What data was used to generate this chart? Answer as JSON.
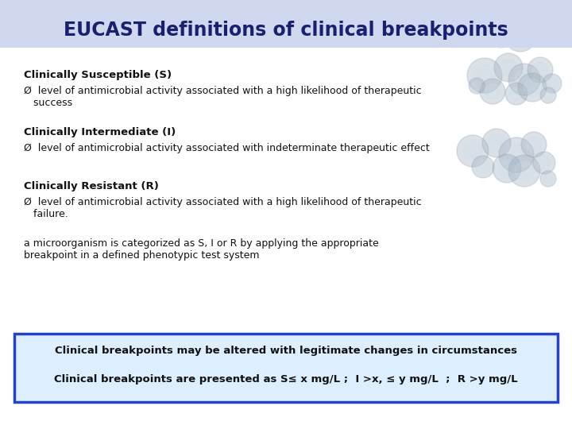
{
  "title": "EUCAST definitions of clinical breakpoints",
  "title_color": "#1a2070",
  "title_fontsize": 17,
  "bg_color": "#ffffff",
  "body_text_color": "#111111",
  "bold_lines": [
    "Clinically Susceptible (S)",
    "Clinically Intermediate (I)",
    "Clinically Resistant (R)"
  ],
  "bullet_s": "Ø  level of antimicrobial activity associated with a high likelihood of therapeutic\n   success",
  "bullet_i": "Ø  level of antimicrobial activity associated with indeterminate therapeutic effect",
  "bullet_r": "Ø  level of antimicrobial activity associated with a high likelihood of therapeutic\n   failure.",
  "extra_text": "a microorganism is categorized as S, I or R by applying the appropriate\nbreakpoint in a defined phenotypic test system",
  "box_line1": "Clinical breakpoints may be altered with legitimate changes in circumstances",
  "box_line2": "Clinical breakpoints are presented as S≤ x mg/L ;  I >x, ≤ y mg/L  ;  R >y mg/L",
  "box_border_color": "#2244cc",
  "box_bg_color": "#ddeeff",
  "box_text_color": "#111111",
  "title_bg_color": "#d0d8f0",
  "bubble_color_outer": "#9aaabb",
  "bubble_color_inner": "#ccdde8"
}
